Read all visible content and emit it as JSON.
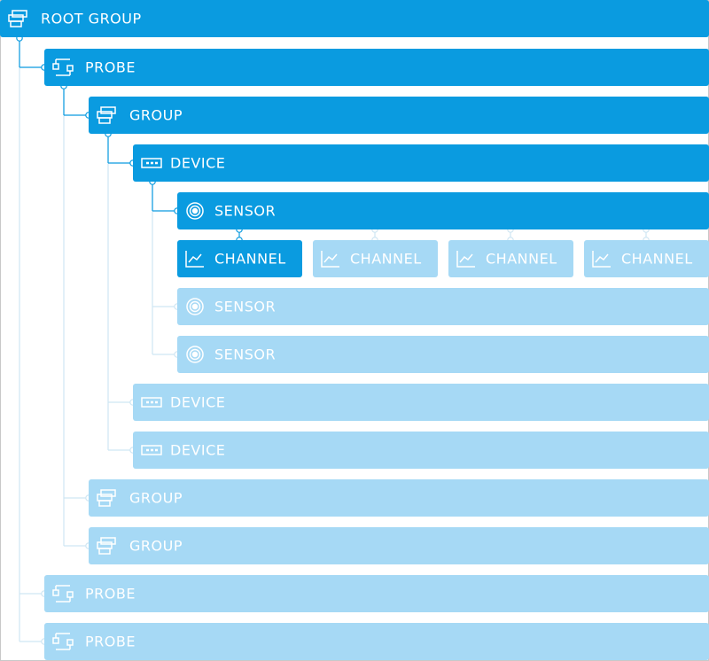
{
  "nodes": [
    {
      "label": "ROOT GROUP"
    },
    {
      "label": "PROBE"
    },
    {
      "label": "GROUP"
    },
    {
      "label": "DEVICE"
    },
    {
      "label": "SENSOR"
    },
    {
      "label": "CHANNEL"
    },
    {
      "label": "CHANNEL"
    },
    {
      "label": "CHANNEL"
    },
    {
      "label": "CHANNEL"
    },
    {
      "label": "SENSOR"
    },
    {
      "label": "SENSOR"
    },
    {
      "label": "DEVICE"
    },
    {
      "label": "DEVICE"
    },
    {
      "label": "GROUP"
    },
    {
      "label": "GROUP"
    },
    {
      "label": "PROBE"
    },
    {
      "label": "PROBE"
    }
  ]
}
